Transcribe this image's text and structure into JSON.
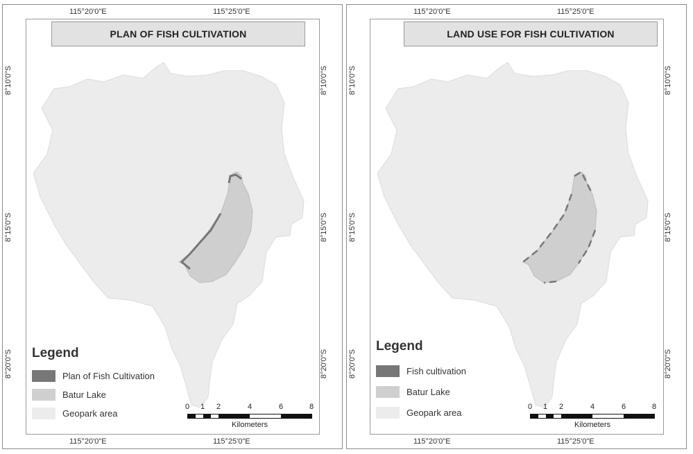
{
  "colors": {
    "geopark": "#ececec",
    "lake": "#cfcfcf",
    "fish": "#777777",
    "title_bg": "#e2e2e2"
  },
  "coords": {
    "lon_left": "115°20'0\"E",
    "lon_right": "115°25'0\"E",
    "lat_top": "8°10'0\"S",
    "lat_mid": "8°15'0\"S",
    "lat_bottom": "8°20'0\"S"
  },
  "scale_bar": {
    "ticks": [
      "0",
      "1",
      "2",
      "4",
      "6",
      "8"
    ],
    "unit": "Kilometers"
  },
  "maps": [
    {
      "title": "PLAN OF FISH CULTIVATION",
      "legend_title": "Legend",
      "legend": [
        {
          "label": "Plan of Fish Cultivation"
        },
        {
          "label": "Batur Lake"
        },
        {
          "label": "Geopark area"
        }
      ]
    },
    {
      "title": "LAND USE FOR FISH CULTIVATION",
      "legend_title": "Legend",
      "legend": [
        {
          "label": "Fish cultivation"
        },
        {
          "label": "Batur Lake"
        },
        {
          "label": "Geopark area"
        }
      ]
    }
  ]
}
